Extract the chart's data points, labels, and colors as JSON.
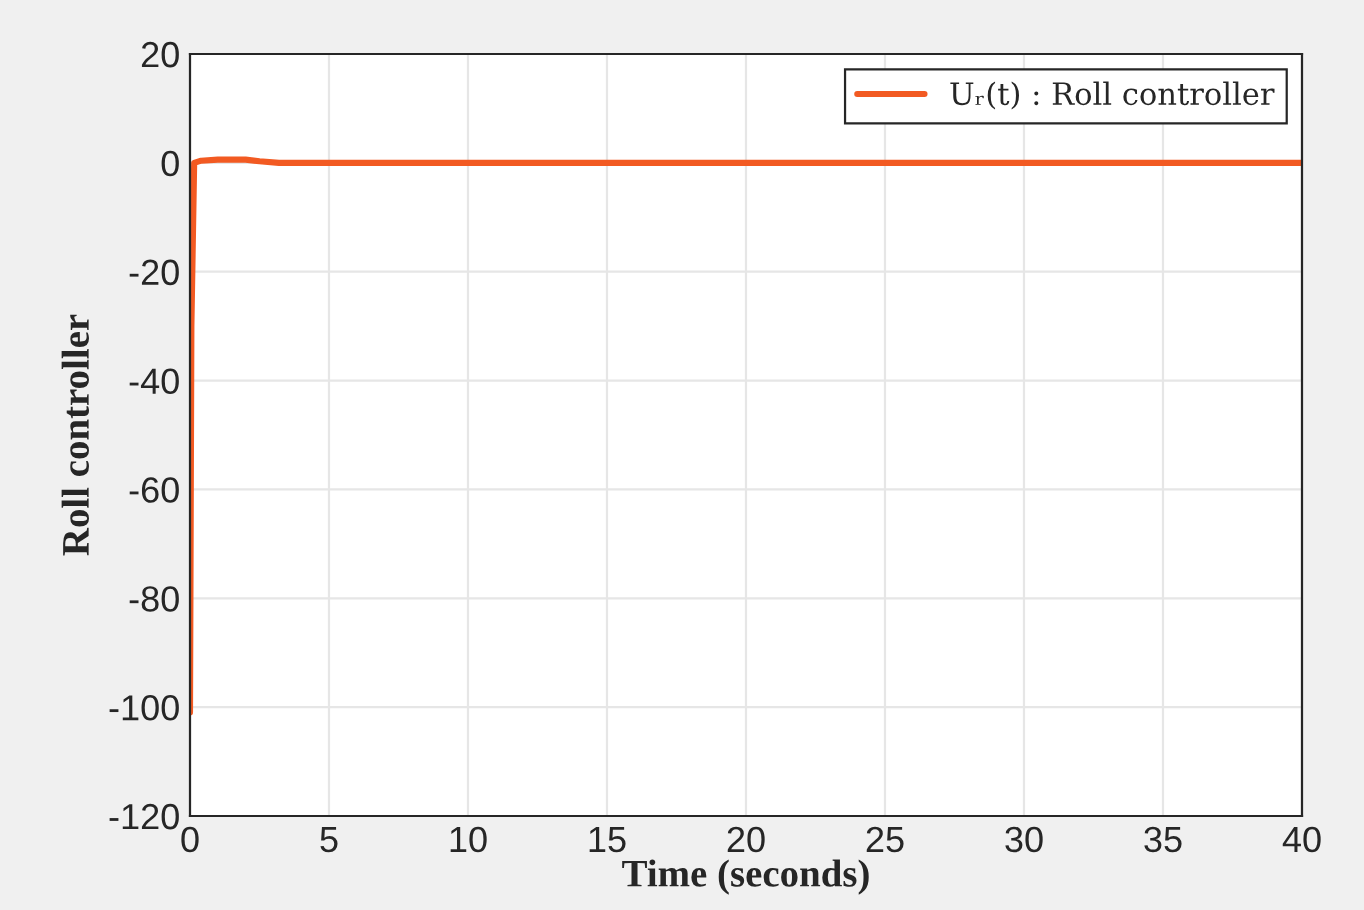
{
  "chart_data": {
    "type": "line",
    "xlabel": "Time (seconds)",
    "ylabel": "Roll controller",
    "x": [
      0,
      0.05,
      0.15,
      0.4,
      1,
      2,
      2.5,
      3.2,
      5,
      10,
      20,
      30,
      40
    ],
    "series": [
      {
        "name": "Uᵣ(t) : Roll controller",
        "color": "#f25a22",
        "values": [
          -101,
          -30,
          0,
          0.4,
          0.6,
          0.6,
          0.3,
          0,
          0,
          0,
          0,
          0,
          0
        ]
      }
    ],
    "xlim": [
      0,
      40
    ],
    "ylim": [
      -120,
      20
    ],
    "xticks": [
      0,
      5,
      10,
      15,
      20,
      25,
      30,
      35,
      40
    ],
    "yticks": [
      {
        "value": -120,
        "label": "-120"
      },
      {
        "value": -100,
        "label": "-100"
      },
      {
        "value": -80,
        "label": "-80"
      },
      {
        "value": -60,
        "label": "-60"
      },
      {
        "value": -40,
        "label": "-40"
      },
      {
        "value": -20,
        "label": "-20"
      },
      0,
      20
    ],
    "grid": true,
    "legend": "top right",
    "marker": "none",
    "line_style": "solid"
  }
}
